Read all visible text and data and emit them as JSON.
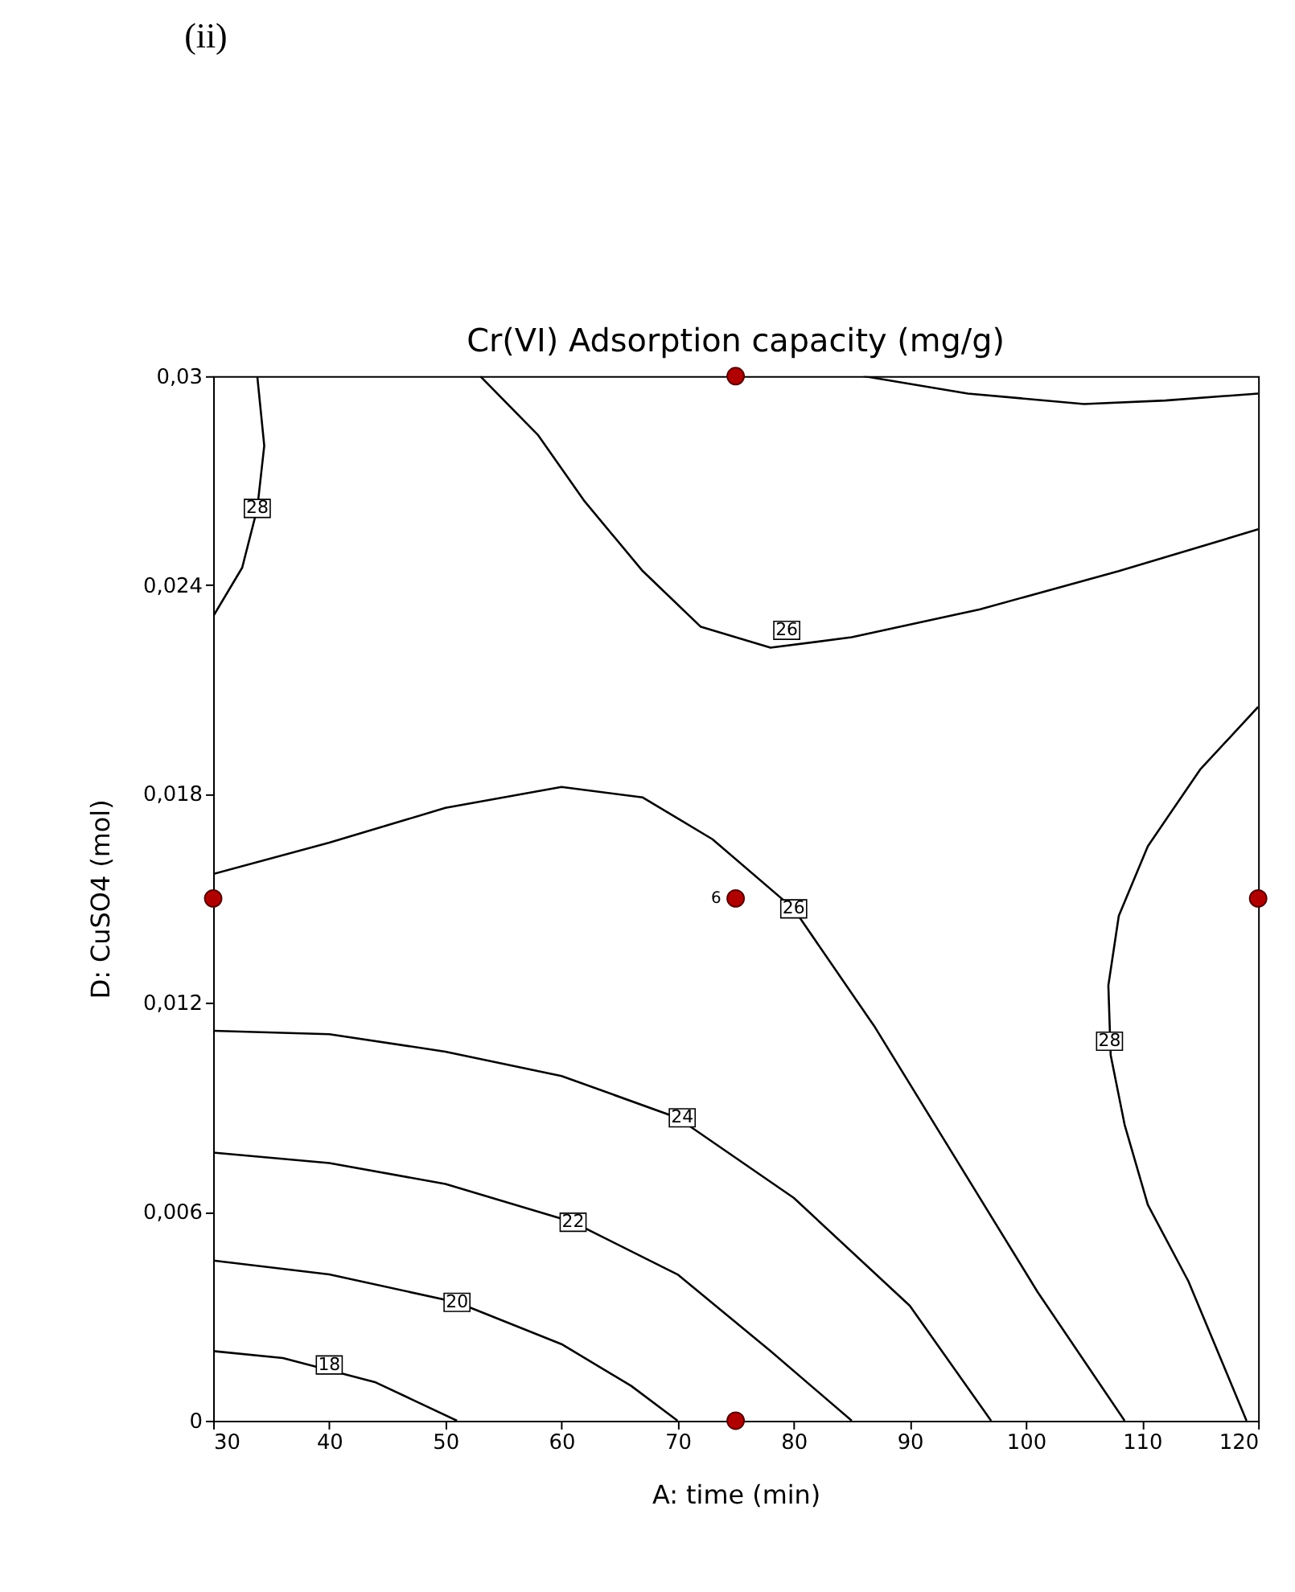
{
  "chart_data": {
    "type": "line",
    "title": "Cr(VI) Adsorption capacity (mg/g)",
    "xlabel": "A: time (min)",
    "ylabel": "D: CuSO4 (mol)",
    "xlim": [
      30,
      120
    ],
    "xticks": [
      30,
      40,
      50,
      60,
      70,
      80,
      90,
      100,
      110,
      120
    ],
    "ylim": [
      0,
      0.03
    ],
    "yticks": [
      {
        "value": 0,
        "label": "0"
      },
      {
        "value": 0.006,
        "label": "0,006"
      },
      {
        "value": 0.012,
        "label": "0,012"
      },
      {
        "value": 0.018,
        "label": "0,018"
      },
      {
        "value": 0.024,
        "label": "0,024"
      },
      {
        "value": 0.03,
        "label": "0,03"
      }
    ],
    "grid": false,
    "line_style": "solid",
    "series": [
      {
        "type": "line",
        "color": "#000000",
        "x": [
          30,
          36,
          44,
          51
        ],
        "values": [
          0.002,
          0.0018,
          0.0011,
          0
        ]
      },
      {
        "type": "line",
        "color": "#000000",
        "x": [
          30,
          40,
          51,
          60,
          66,
          70
        ],
        "values": [
          0.0046,
          0.0042,
          0.0034,
          0.0022,
          0.001,
          0
        ]
      },
      {
        "type": "line",
        "color": "#000000",
        "x": [
          30,
          40,
          50,
          61,
          70,
          78,
          85
        ],
        "values": [
          0.0077,
          0.0074,
          0.0068,
          0.0057,
          0.0042,
          0.002,
          0
        ]
      },
      {
        "type": "line",
        "color": "#000000",
        "x": [
          30,
          40,
          50,
          60,
          70,
          80,
          90,
          97
        ],
        "values": [
          0.0112,
          0.0111,
          0.0106,
          0.0099,
          0.0087,
          0.0064,
          0.0033,
          0
        ]
      },
      {
        "type": "line",
        "color": "#000000",
        "x": [
          30,
          40,
          50,
          60,
          67,
          73,
          80,
          87,
          94,
          101,
          108.5
        ],
        "values": [
          0.0157,
          0.0166,
          0.0176,
          0.0182,
          0.0179,
          0.0167,
          0.0147,
          0.0113,
          0.0075,
          0.0037,
          0
        ]
      },
      {
        "type": "line",
        "color": "#000000",
        "x": [
          53,
          58,
          62,
          67,
          72,
          78,
          85,
          96,
          108,
          120
        ],
        "values": [
          0.03,
          0.0283,
          0.0264,
          0.0244,
          0.0228,
          0.0222,
          0.0225,
          0.0233,
          0.0244,
          0.0256
        ]
      },
      {
        "type": "line",
        "color": "#000000",
        "x": [
          86,
          95,
          105,
          112,
          120
        ],
        "values": [
          0.03,
          0.0295,
          0.0292,
          0.0293,
          0.0295
        ]
      },
      {
        "type": "line",
        "color": "#000000",
        "x": [
          33.8,
          34.4,
          33.8,
          32.5,
          30
        ],
        "values": [
          0.03,
          0.028,
          0.0262,
          0.0245,
          0.0231
        ]
      },
      {
        "type": "line",
        "color": "#000000",
        "x": [
          120,
          115,
          110.5,
          108,
          107.1,
          107.3,
          108.5,
          110.5,
          114,
          119
        ],
        "values": [
          0.0205,
          0.0187,
          0.0165,
          0.0145,
          0.0125,
          0.0105,
          0.0085,
          0.0062,
          0.004,
          0
        ]
      },
      {
        "type": "scatter",
        "color": "#b00000",
        "marker": "circle",
        "x": [
          30,
          75,
          120,
          75,
          75
        ],
        "values": [
          0.015,
          0.015,
          0.015,
          0,
          0.03
        ]
      }
    ],
    "annotations": [
      "(ii)",
      {
        "text": "18",
        "x": 40,
        "y": 0.0016
      },
      {
        "text": "20",
        "x": 51,
        "y": 0.0034
      },
      {
        "text": "22",
        "x": 61,
        "y": 0.0057
      },
      {
        "text": "24",
        "x": 70.4,
        "y": 0.0087
      },
      {
        "text": "26",
        "x": 80,
        "y": 0.0147
      },
      {
        "text": "26",
        "x": 79.4,
        "y": 0.0227
      },
      {
        "text": "28",
        "x": 33.8,
        "y": 0.0262
      },
      {
        "text": "28",
        "x": 107.2,
        "y": 0.0109
      },
      {
        "text": "6",
        "x": 75,
        "y": 0.015
      }
    ]
  }
}
